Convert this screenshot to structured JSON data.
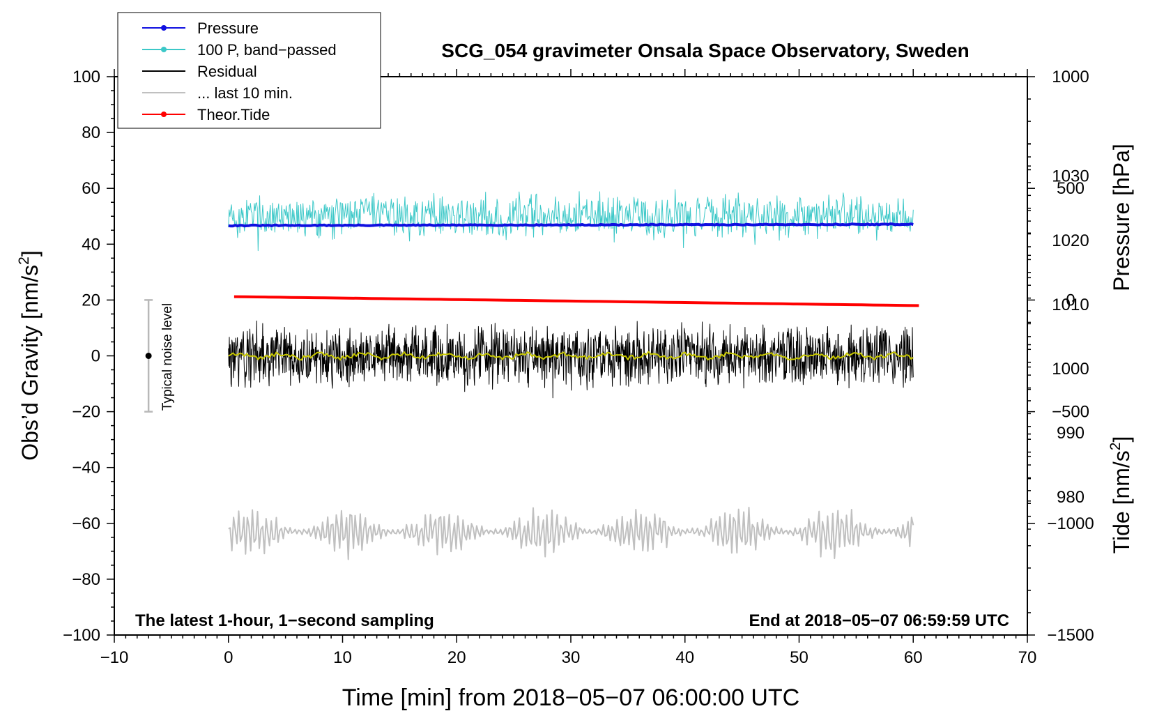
{
  "chart_data": {
    "type": "line",
    "title": "SCG_054 gravimeter Onsala Space Observatory, Sweden",
    "xlabel": "Time [min] from 2018−05−07 06:00:00 UTC",
    "ylabel_left_main": "Obs’d Gravity [nm/s",
    "ylabel_left_sup": "2",
    "ylabel_left_end": "]",
    "ylabel_right_pressure": "Pressure [hPa]",
    "ylabel_right_tide_main": "Tide [nm/s",
    "ylabel_right_tide_sup": "2",
    "ylabel_right_tide_end": "]",
    "xlim": [
      -10,
      70
    ],
    "ylim": [
      -100,
      100
    ],
    "x_ticks": [
      -10,
      0,
      10,
      20,
      30,
      40,
      50,
      60,
      70
    ],
    "x_tick_labels": [
      "−10",
      "0",
      "10",
      "20",
      "30",
      "40",
      "50",
      "60",
      "70"
    ],
    "y_ticks": [
      -100,
      -80,
      -60,
      -40,
      -20,
      0,
      20,
      40,
      60,
      80,
      100
    ],
    "y_tick_labels": [
      "−100",
      "−80",
      "−60",
      "−40",
      "−20",
      "0",
      "20",
      "40",
      "60",
      "80",
      "100"
    ],
    "pressure_axis": {
      "range": [
        958.5,
        1045.5
      ],
      "ticks": [
        980,
        990,
        1000,
        1010,
        1020,
        1030
      ],
      "tick_labels": [
        "980",
        "990",
        "1000",
        "1010",
        "1020",
        "1030"
      ]
    },
    "tide_axis": {
      "range": [
        -1500,
        1000
      ],
      "ticks": [
        -1500,
        -1000,
        -500,
        0,
        500,
        1000
      ],
      "tick_labels": [
        "−1500",
        "−1000",
        "−500",
        "0",
        "500",
        "1000"
      ]
    },
    "annotation_left": "The latest 1-hour, 1−second sampling",
    "annotation_right": "End at 2018−05−07 06:59:59 UTC",
    "noise_bar": {
      "label": "Typical noise level",
      "x": -7,
      "center": 0,
      "low": -20,
      "high": 20
    },
    "legend": {
      "position": "top-left",
      "entries": [
        {
          "label": "Pressure",
          "color": "#1010e0",
          "marker": true
        },
        {
          "label": "100 P, band−passed",
          "color": "#3cc8c8",
          "marker": true
        },
        {
          "label": "Residual",
          "color": "#000000",
          "marker": false
        },
        {
          "label": "... last 10 min.",
          "color": "#c0c0c0",
          "marker": false
        },
        {
          "label": "Theor.Tide",
          "color": "#ff0000",
          "marker": true
        }
      ]
    },
    "series": [
      {
        "name": "Pressure",
        "axis": "pressure",
        "color": "#1010e0",
        "start": 1022.3,
        "end": 1022.5,
        "noise": 0.15,
        "x_start": 0,
        "x_end": 60
      },
      {
        "name": "100 P, band-passed",
        "color": "#3cc8c8",
        "center": 50,
        "amplitude": 9,
        "x_start": 0,
        "x_end": 60
      },
      {
        "name": "Residual",
        "color": "#000000",
        "center": 0,
        "amplitude": 13,
        "x_start": 0,
        "x_end": 60
      },
      {
        "name": "Residual (smoothed)",
        "color": "#c8c800",
        "center": 0,
        "amplitude": 1.5,
        "x_start": 0,
        "x_end": 60
      },
      {
        "name": "... last 10 min.",
        "color": "#c0c0c0",
        "center": -63,
        "amplitude": 10,
        "x_start": 0,
        "x_end": 60
      },
      {
        "name": "Theor.Tide",
        "axis": "tide",
        "color": "#ff0000",
        "start": 15,
        "end": -25,
        "x_start": 0.5,
        "x_end": 60.5
      }
    ]
  }
}
